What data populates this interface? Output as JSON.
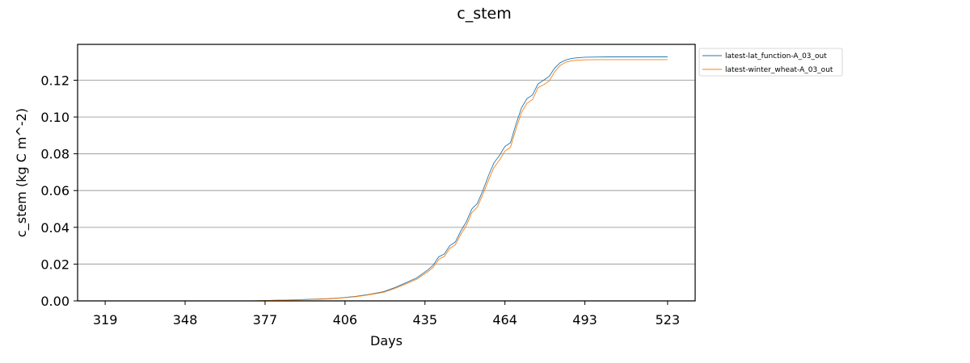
{
  "chart_data": {
    "type": "line",
    "title": "c_stem",
    "xlabel": "Days",
    "ylabel": "c_stem (kg C m^-2)",
    "xlim": [
      309,
      533
    ],
    "ylim": [
      0.0,
      0.1395
    ],
    "xticks": [
      319,
      348,
      377,
      406,
      435,
      464,
      493,
      523
    ],
    "xtick_labels": [
      "319",
      "348",
      "377",
      "406",
      "435",
      "464",
      "493",
      "523"
    ],
    "yticks": [
      0.0,
      0.02,
      0.04,
      0.06,
      0.08,
      0.1,
      0.12
    ],
    "ytick_labels": [
      "0.00",
      "0.02",
      "0.04",
      "0.06",
      "0.08",
      "0.10",
      "0.12"
    ],
    "grid": "horizontal",
    "legend_position": "outside-top-right",
    "series": [
      {
        "name": "latest-lat_function-A_03_out",
        "color": "#1f77b4",
        "x": [
          373,
          380,
          390,
          400,
          405,
          410,
          415,
          420,
          424,
          428,
          432,
          436,
          438,
          440,
          442,
          444,
          446,
          448,
          450,
          452,
          454,
          456,
          458,
          460,
          462,
          464,
          466,
          468,
          470,
          472,
          474,
          476,
          478,
          480,
          482,
          484,
          486,
          488,
          490,
          493,
          497,
          502,
          510,
          518,
          523
        ],
        "y": [
          0.0,
          0.0003,
          0.0007,
          0.0012,
          0.0017,
          0.0025,
          0.0036,
          0.005,
          0.0072,
          0.0098,
          0.0125,
          0.0168,
          0.0195,
          0.024,
          0.0255,
          0.03,
          0.032,
          0.038,
          0.043,
          0.05,
          0.053,
          0.06,
          0.068,
          0.075,
          0.079,
          0.084,
          0.086,
          0.096,
          0.105,
          0.11,
          0.112,
          0.118,
          0.12,
          0.122,
          0.1265,
          0.1295,
          0.131,
          0.1318,
          0.1322,
          0.1325,
          0.1326,
          0.1327,
          0.1327,
          0.1327,
          0.1327
        ]
      },
      {
        "name": "latest-winter_wheat-A_03_out",
        "color": "#ff7f0e",
        "x": [
          373,
          380,
          390,
          400,
          405,
          410,
          415,
          420,
          424,
          428,
          432,
          436,
          438,
          440,
          442,
          444,
          446,
          448,
          450,
          452,
          454,
          456,
          458,
          460,
          462,
          464,
          466,
          468,
          470,
          472,
          474,
          476,
          478,
          480,
          482,
          484,
          486,
          488,
          490,
          493,
          497,
          502,
          510,
          518,
          523
        ],
        "y": [
          0.0,
          0.0003,
          0.0006,
          0.0011,
          0.0016,
          0.0023,
          0.0034,
          0.0047,
          0.0067,
          0.0092,
          0.0118,
          0.0158,
          0.0183,
          0.0226,
          0.0242,
          0.0285,
          0.0305,
          0.0362,
          0.041,
          0.048,
          0.051,
          0.058,
          0.0655,
          0.0725,
          0.0765,
          0.0815,
          0.0835,
          0.0935,
          0.1025,
          0.1075,
          0.1095,
          0.116,
          0.1175,
          0.1195,
          0.1245,
          0.128,
          0.1298,
          0.1305,
          0.1309,
          0.1311,
          0.1312,
          0.1312,
          0.1312,
          0.1312,
          0.1312
        ]
      }
    ]
  }
}
